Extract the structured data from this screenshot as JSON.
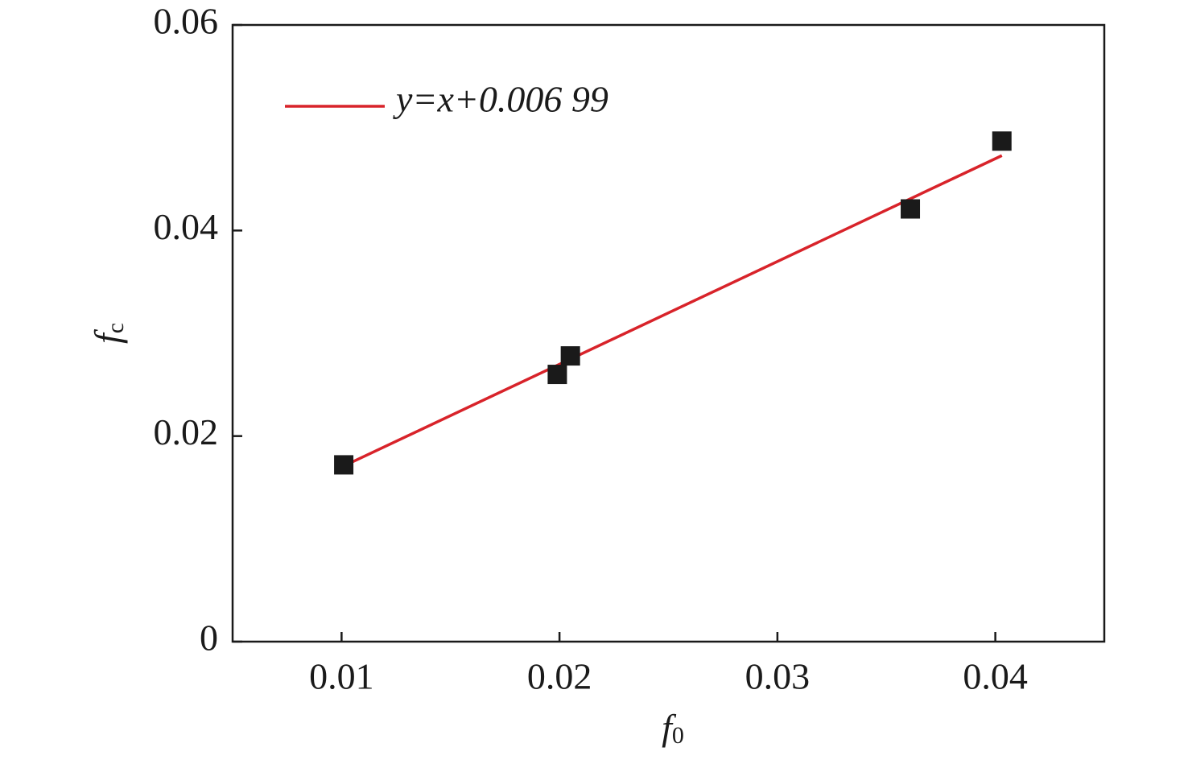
{
  "chart_data": {
    "type": "scatter",
    "xlabel": {
      "base": "f",
      "sub": "0"
    },
    "ylabel": {
      "base": "f",
      "sub": "c"
    },
    "xlim": [
      0.005,
      0.045
    ],
    "ylim": [
      0,
      0.06
    ],
    "xticks": [
      0.01,
      0.02,
      0.03,
      0.04
    ],
    "yticks": [
      0,
      0.02,
      0.04,
      0.06
    ],
    "legend": "upper left",
    "series": [
      {
        "name": "y=x+0.006 99",
        "type": "line",
        "color": "#d8232a",
        "x": [
          0.0101,
          0.0403
        ],
        "values": [
          0.01709,
          0.04729
        ]
      },
      {
        "type": "scatter",
        "color": "#1a1a1a",
        "x": [
          0.0101,
          0.0199,
          0.0205,
          0.0361,
          0.0403
        ],
        "values": [
          0.0172,
          0.026,
          0.0278,
          0.0421,
          0.0487
        ]
      }
    ]
  }
}
